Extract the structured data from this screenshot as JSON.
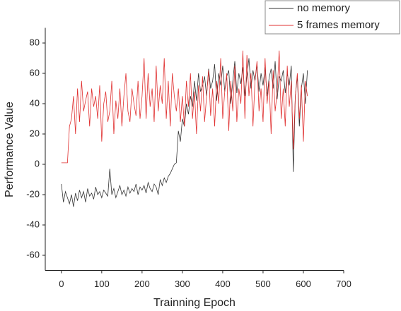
{
  "chart_data": {
    "type": "line",
    "xlabel": "Trainning Epoch",
    "ylabel": "Performance Value",
    "x": [
      0,
      5,
      10,
      15,
      20,
      25,
      30,
      35,
      40,
      45,
      50,
      55,
      60,
      65,
      70,
      75,
      80,
      85,
      90,
      95,
      100,
      105,
      110,
      115,
      120,
      125,
      130,
      135,
      140,
      145,
      150,
      155,
      160,
      165,
      170,
      175,
      180,
      185,
      190,
      195,
      200,
      205,
      210,
      215,
      220,
      225,
      230,
      235,
      240,
      245,
      250,
      255,
      260,
      265,
      270,
      275,
      280,
      285,
      290,
      295,
      300,
      305,
      310,
      315,
      320,
      325,
      330,
      335,
      340,
      345,
      350,
      355,
      360,
      365,
      370,
      375,
      380,
      385,
      390,
      395,
      400,
      405,
      410,
      415,
      420,
      425,
      430,
      435,
      440,
      445,
      450,
      455,
      460,
      465,
      470,
      475,
      480,
      485,
      490,
      495,
      500,
      505,
      510,
      515,
      520,
      525,
      530,
      535,
      540,
      545,
      550,
      555,
      560,
      565,
      570,
      575,
      580,
      585,
      590,
      595,
      600,
      605,
      610
    ],
    "series": [
      {
        "name": "no memory",
        "color": "#333333",
        "values": [
          -13,
          -25,
          -18,
          -22,
          -26,
          -20,
          -28,
          -19,
          -24,
          -17,
          -22,
          -18,
          -25,
          -16,
          -21,
          -19,
          -23,
          -15,
          -20,
          -18,
          -22,
          -17,
          -19,
          -21,
          -3,
          -20,
          -16,
          -22,
          -18,
          -14,
          -20,
          -17,
          -21,
          -15,
          -19,
          -16,
          -18,
          -13,
          -20,
          -15,
          -17,
          -14,
          -19,
          -12,
          -16,
          -18,
          -13,
          -15,
          -20,
          -10,
          -14,
          -9,
          -12,
          -8,
          -6,
          -3,
          0,
          1,
          22,
          15,
          30,
          25,
          40,
          33,
          45,
          38,
          55,
          42,
          60,
          48,
          52,
          58,
          45,
          63,
          50,
          55,
          66,
          42,
          60,
          52,
          65,
          48,
          58,
          62,
          40,
          55,
          68,
          47,
          60,
          53,
          64,
          45,
          58,
          70,
          50,
          62,
          55,
          66,
          48,
          60,
          52,
          64,
          45,
          57,
          63,
          50,
          68,
          43,
          58,
          55,
          62,
          47,
          60,
          52,
          65,
          -5,
          45,
          58,
          25,
          50,
          60,
          40,
          62
        ]
      },
      {
        "name": "5 frames memory",
        "color": "#e03030",
        "values": [
          1,
          1,
          1,
          1,
          25,
          30,
          45,
          20,
          50,
          28,
          55,
          35,
          42,
          48,
          25,
          50,
          38,
          45,
          30,
          52,
          15,
          40,
          48,
          28,
          35,
          55,
          20,
          42,
          30,
          50,
          25,
          45,
          60,
          35,
          28,
          50,
          40,
          32,
          55,
          30,
          45,
          70,
          30,
          60,
          38,
          50,
          28,
          65,
          35,
          52,
          40,
          70,
          30,
          55,
          25,
          60,
          45,
          35,
          50,
          28,
          45,
          25,
          55,
          38,
          60,
          30,
          48,
          20,
          52,
          35,
          58,
          28,
          45,
          62,
          32,
          50,
          25,
          55,
          40,
          70,
          30,
          48,
          60,
          22,
          55,
          35,
          65,
          28,
          50,
          40,
          75,
          30,
          72,
          45,
          60,
          25,
          55,
          68,
          35,
          50,
          28,
          70,
          40,
          55,
          20,
          62,
          35,
          48,
          75,
          30,
          50,
          25,
          65,
          38,
          55,
          10,
          45,
          60,
          30,
          52,
          15,
          55,
          45
        ]
      }
    ],
    "xlim": [
      -40,
      700
    ],
    "ylim": [
      -70,
      90
    ],
    "xticks": [
      0,
      100,
      200,
      300,
      400,
      500,
      600,
      700
    ],
    "yticks": [
      -60,
      -40,
      -20,
      0,
      20,
      40,
      60,
      80
    ]
  }
}
